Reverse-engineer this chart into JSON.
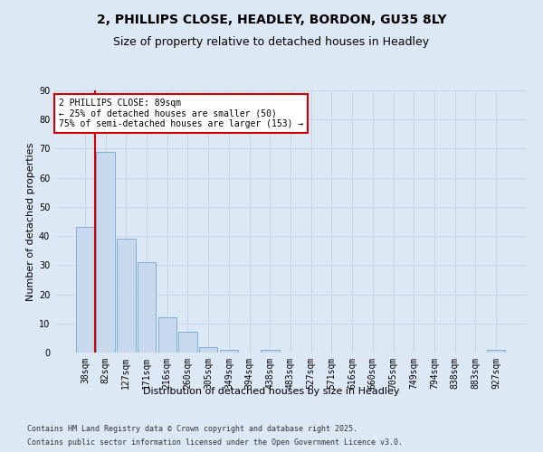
{
  "title_line1": "2, PHILLIPS CLOSE, HEADLEY, BORDON, GU35 8LY",
  "title_line2": "Size of property relative to detached houses in Headley",
  "xlabel": "Distribution of detached houses by size in Headley",
  "ylabel": "Number of detached properties",
  "categories": [
    "38sqm",
    "82sqm",
    "127sqm",
    "171sqm",
    "216sqm",
    "260sqm",
    "305sqm",
    "349sqm",
    "394sqm",
    "438sqm",
    "483sqm",
    "527sqm",
    "571sqm",
    "616sqm",
    "660sqm",
    "705sqm",
    "749sqm",
    "794sqm",
    "838sqm",
    "883sqm",
    "927sqm"
  ],
  "values": [
    43,
    69,
    39,
    31,
    12,
    7,
    2,
    1,
    0,
    1,
    0,
    0,
    0,
    0,
    0,
    0,
    0,
    0,
    0,
    0,
    1
  ],
  "bar_color": "#c8d9ee",
  "bar_edge_color": "#7bafd4",
  "grid_color": "#c8d4e8",
  "background_color": "#dde8f5",
  "red_line_x": 0.5,
  "annotation_text": "2 PHILLIPS CLOSE: 89sqm\n← 25% of detached houses are smaller (50)\n75% of semi-detached houses are larger (153) →",
  "annotation_box_color": "#ffffff",
  "annotation_box_edge": "#cc0000",
  "annotation_text_color": "#000000",
  "red_line_color": "#cc0000",
  "ylim": [
    0,
    90
  ],
  "yticks": [
    0,
    10,
    20,
    30,
    40,
    50,
    60,
    70,
    80,
    90
  ],
  "footer_line1": "Contains HM Land Registry data © Crown copyright and database right 2025.",
  "footer_line2": "Contains public sector information licensed under the Open Government Licence v3.0.",
  "title_fontsize": 10,
  "subtitle_fontsize": 9,
  "axis_label_fontsize": 8,
  "tick_fontsize": 7,
  "annotation_fontsize": 7,
  "footer_fontsize": 6
}
